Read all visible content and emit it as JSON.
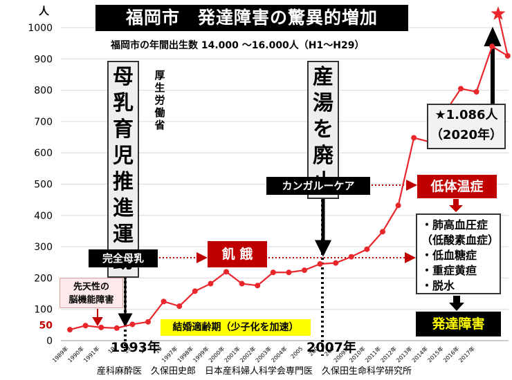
{
  "title": "福岡市　発達障害の驚異的増加",
  "subtitle": "福岡市の年間出生数 14.000 ～16.000人（H1～H29）",
  "y_unit": "人",
  "colors": {
    "line": "#e8262b",
    "accent_red": "#c00000",
    "highlight": "#ffff00"
  },
  "annotations": {
    "breastfeeding_campaign": "母乳育児推進運動",
    "ministry": "厚生労働省",
    "birth_bath_abolished": "産湯を廃止",
    "kangaroo_care": "カンガルーケア",
    "exclusive_breastfeeding": "完全母乳",
    "starvation": "飢 餓",
    "hypothermia": "低体温症",
    "conditions": [
      "・肺高血圧症",
      "（低酸素血症）",
      "・低血糖症",
      "・重症黄疸",
      "・脱水"
    ],
    "developmental_disorder": "発達障害",
    "star_value": "★1.086人",
    "star_year": "（2020年）",
    "marriage_age": "結婚適齢期（少子化を加速）",
    "congenital": [
      "先天性の",
      "脳機能障害"
    ],
    "year_1993": "1993年",
    "year_2007": "2007年"
  },
  "footer": "産科麻酔医　久保田史郎　日本産科婦人科学会専門医　久保田生命科学研究所",
  "chart_data": {
    "type": "line",
    "x": [
      "1989年",
      "1990年",
      "1991年",
      "1992年",
      "1993年",
      "1994年",
      "1995年",
      "1996年",
      "1997年",
      "1998年",
      "1999年",
      "2000年",
      "2001年",
      "2002年",
      "2003年",
      "2004年",
      "2005年",
      "2006年",
      "2007年",
      "2008年",
      "2009年",
      "2010年",
      "2011年",
      "2012年",
      "2013年",
      "2014年",
      "2015年",
      "2016年",
      "2017年"
    ],
    "x_tick_labels": [
      "1989年",
      "1990年",
      "1991年",
      "19",
      "19",
      "19",
      "19",
      "1997年",
      "1998年",
      "1999年",
      "2000年",
      "2001年",
      "2002年",
      "2003年",
      "2004年",
      "2005",
      "200",
      "200",
      "2009年",
      "2010年",
      "2011年",
      "2012年",
      "2013年",
      "2014年",
      "2015年",
      "2016年",
      "2017年"
    ],
    "series": [
      {
        "values": [
          35,
          48,
          42,
          40,
          52,
          60,
          125,
          110,
          158,
          182,
          220,
          182,
          176,
          218,
          218,
          225,
          245,
          248,
          268,
          292,
          348,
          432,
          648,
          635,
          730,
          805,
          795,
          940,
          910
        ]
      }
    ],
    "extrapolation": {
      "x": "2020年",
      "y": 1086
    },
    "ylim": [
      0,
      1000
    ],
    "yticks": [
      0,
      50,
      100,
      200,
      300,
      400,
      500,
      600,
      700,
      800,
      900,
      1000
    ],
    "grid": true
  }
}
